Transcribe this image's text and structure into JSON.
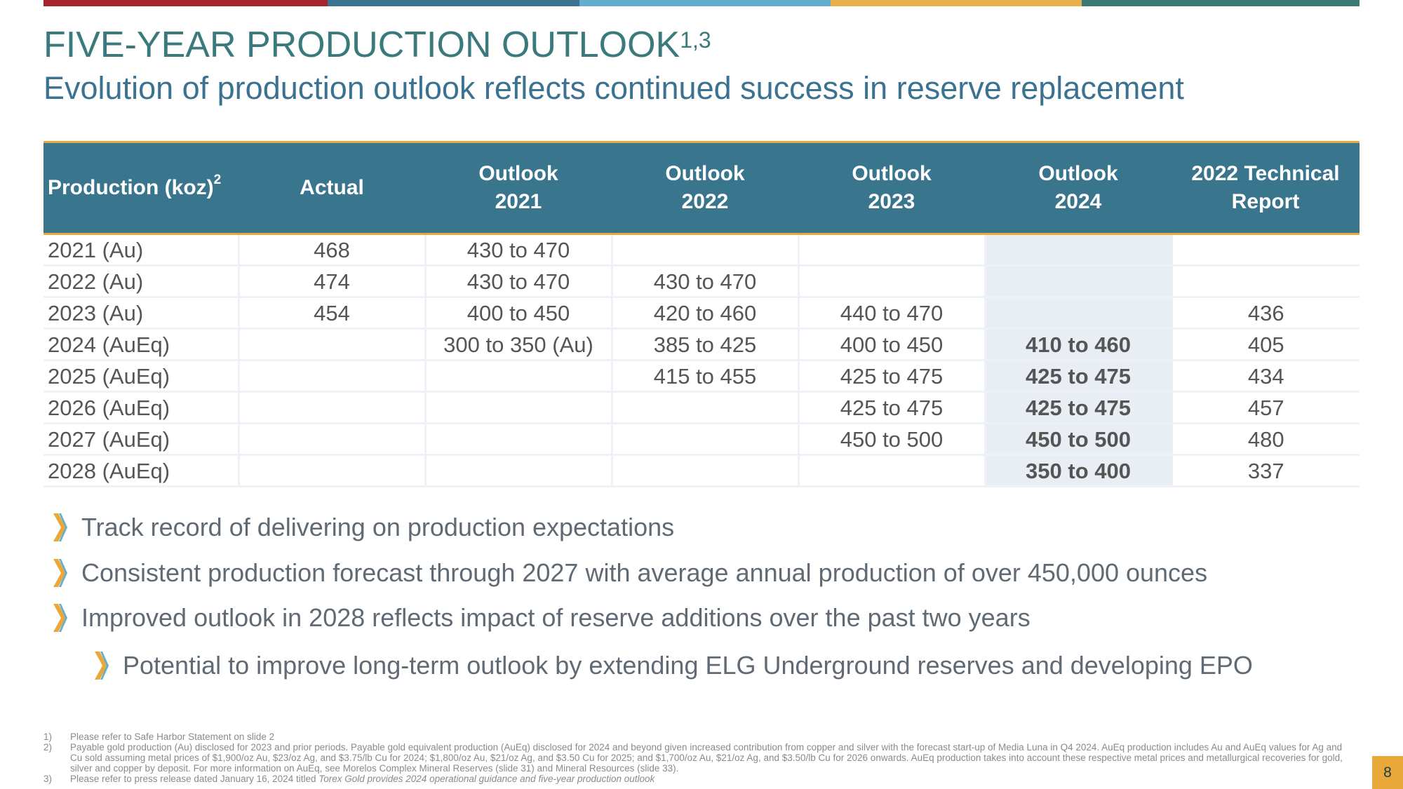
{
  "top_bar_colors": [
    "#a8222e",
    "#3b7290",
    "#62aecf",
    "#e8b04a",
    "#3a7a72"
  ],
  "accent_color": "#e8a93a",
  "header_color": "#3a758e",
  "title": {
    "text": "FIVE-YEAR PRODUCTION OUTLOOK",
    "superscript": "1,3"
  },
  "subtitle": "Evolution of production outlook reflects continued success in reserve replacement",
  "table": {
    "header": {
      "first": "Production (koz)",
      "first_sup": "2",
      "cols": [
        {
          "l1": "Actual",
          "l2": ""
        },
        {
          "l1": "Outlook",
          "l2": "2021"
        },
        {
          "l1": "Outlook",
          "l2": "2022"
        },
        {
          "l1": "Outlook",
          "l2": "2023"
        },
        {
          "l1": "Outlook",
          "l2": "2024"
        },
        {
          "l1": "2022 Technical",
          "l2": "Report"
        }
      ]
    },
    "rows": [
      [
        "2021 (Au)",
        "468",
        "430 to 470",
        "",
        "",
        "",
        ""
      ],
      [
        "2022 (Au)",
        "474",
        "430 to 470",
        "430 to 470",
        "",
        "",
        ""
      ],
      [
        "2023 (Au)",
        "454",
        "400 to 450",
        "420 to 460",
        "440 to 470",
        "",
        "436"
      ],
      [
        "2024 (AuEq)",
        "",
        "300 to 350 (Au)",
        "385 to 425",
        "400 to 450",
        "410 to 460",
        "405"
      ],
      [
        "2025 (AuEq)",
        "",
        "",
        "415 to 455",
        "425 to 475",
        "425 to 475",
        "434"
      ],
      [
        "2026 (AuEq)",
        "",
        "",
        "",
        "425 to 475",
        "425 to 475",
        "457"
      ],
      [
        "2027 (AuEq)",
        "",
        "",
        "",
        "450 to 500",
        "450 to 500",
        "480"
      ],
      [
        "2028 (AuEq)",
        "",
        "",
        "",
        "",
        "350 to 400",
        "337"
      ]
    ]
  },
  "bullets": [
    {
      "text": "Track record of delivering on production expectations",
      "level": 1
    },
    {
      "text": "Consistent production forecast through 2027 with average annual production of over 450,000 ounces",
      "level": 1
    },
    {
      "text": "Improved outlook in 2028 reflects impact of reserve additions over the past two years",
      "level": 1
    },
    {
      "text": "Potential to improve long-term outlook by extending ELG Underground reserves and developing EPO",
      "level": 2
    }
  ],
  "footnotes": [
    {
      "num": "1)",
      "text": "Please refer to Safe Harbor Statement on slide 2",
      "italic": ""
    },
    {
      "num": "2)",
      "text": "Payable gold production (Au) disclosed for 2023 and prior periods. Payable gold equivalent production (AuEq) disclosed for 2024 and beyond given increased contribution from copper and silver with the forecast start-up of Media Luna in Q4 2024. AuEq production includes Au and AuEq values for Ag and Cu sold assuming metal prices of $1,900/oz Au, $23/oz Ag, and $3.75/lb Cu for 2024; $1,800/oz Au, $21/oz Ag, and $3.50 Cu for 2025; and $1,700/oz Au, $21/oz Ag, and $3.50/lb Cu for 2026 onwards. AuEq production takes into account these respective metal prices and metallurgical recoveries for gold, silver and copper by deposit. For more information on AuEq, see Morelos Complex Mineral Reserves (slide 31) and Mineral Resources (slide 33).",
      "italic": ""
    },
    {
      "num": "3)",
      "text": "Please refer to press release dated January 16, 2024 titled ",
      "italic": "Torex Gold provides 2024 operational guidance and five-year production outlook"
    }
  ],
  "page_number": "8"
}
